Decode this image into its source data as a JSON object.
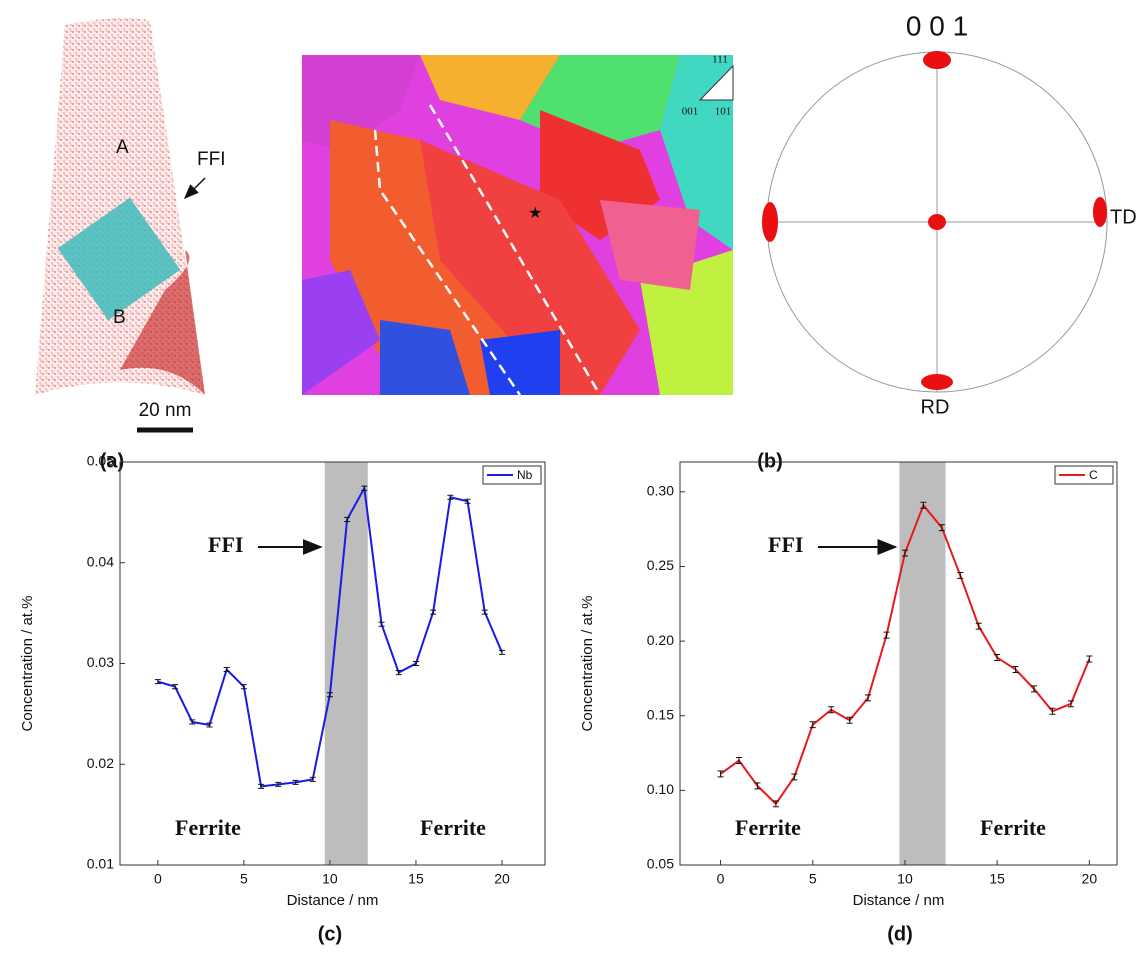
{
  "panel_a": {
    "labels": [
      "A",
      "FFI",
      "B"
    ],
    "scale_bar": "20 nm",
    "caption": "(a)"
  },
  "panel_b": {
    "ipf_corners": [
      "111",
      "001",
      "101"
    ],
    "pole_figure_title": "0 0 1",
    "td": "TD",
    "rd": "RD",
    "caption": "(b)"
  },
  "chart_data": [
    {
      "type": "line",
      "panel_label": "(c)",
      "x_label": "Distance / nm",
      "y_label": "Concentration / at.%",
      "x": [
        0,
        1,
        2,
        3,
        4,
        5,
        6,
        7,
        8,
        9,
        10,
        11,
        12,
        13,
        14,
        15,
        16,
        17,
        18,
        19,
        20
      ],
      "series": [
        {
          "name": "Nb",
          "color": "#1a1ae6",
          "values": [
            0.0282,
            0.0277,
            0.0242,
            0.0239,
            0.0294,
            0.0277,
            0.0178,
            0.018,
            0.0182,
            0.0185,
            0.0269,
            0.0443,
            0.0474,
            0.0339,
            0.0291,
            0.03,
            0.0351,
            0.0465,
            0.0461,
            0.0351,
            0.0311
          ],
          "errors": [
            0.0002,
            0.0002,
            0.0002,
            0.0002,
            0.0002,
            0.0002,
            0.0002,
            0.0002,
            0.0002,
            0.0002,
            0.0002,
            0.0002,
            0.0002,
            0.0002,
            0.0002,
            0.0002,
            0.0002,
            0.0002,
            0.0002,
            0.0002,
            0.0002
          ]
        }
      ],
      "xlim": [
        -2.2,
        22.5
      ],
      "ylim": [
        0.01,
        0.05
      ],
      "xticks": [
        0,
        5,
        10,
        15,
        20
      ],
      "yticks": [
        0.01,
        0.02,
        0.03,
        0.04,
        0.05
      ],
      "legend": "upper right",
      "shaded_region": [
        9.7,
        12.2
      ],
      "annotations": [
        "FFI",
        "Ferrite",
        "Ferrite"
      ]
    },
    {
      "type": "line",
      "panel_label": "(d)",
      "x_label": "Distance / nm",
      "y_label": "Concentration / at.%",
      "x": [
        0,
        1,
        2,
        3,
        4,
        5,
        6,
        7,
        8,
        9,
        10,
        11,
        12,
        13,
        14,
        15,
        16,
        17,
        18,
        19,
        20
      ],
      "series": [
        {
          "name": "C",
          "color": "#e61a1a",
          "values": [
            0.111,
            0.12,
            0.103,
            0.091,
            0.109,
            0.144,
            0.154,
            0.147,
            0.162,
            0.204,
            0.259,
            0.291,
            0.276,
            0.244,
            0.21,
            0.189,
            0.181,
            0.168,
            0.153,
            0.158,
            0.188
          ],
          "errors": [
            0.002,
            0.002,
            0.002,
            0.002,
            0.002,
            0.002,
            0.002,
            0.002,
            0.002,
            0.002,
            0.002,
            0.002,
            0.002,
            0.002,
            0.002,
            0.002,
            0.002,
            0.002,
            0.002,
            0.002,
            0.002
          ]
        }
      ],
      "xlim": [
        -2.2,
        21.5
      ],
      "ylim": [
        0.05,
        0.32
      ],
      "xticks": [
        0,
        5,
        10,
        15,
        20
      ],
      "yticks": [
        0.05,
        {
          "value": 0.1,
          "label": "0.10"
        },
        0.15,
        {
          "value": 0.2,
          "label": "0.20"
        },
        0.25,
        {
          "value": 0.3,
          "label": "0.30"
        }
      ],
      "legend": "upper right",
      "shaded_region": [
        9.7,
        12.2
      ],
      "annotations": [
        "FFI",
        "Ferrite",
        "Ferrite"
      ]
    }
  ]
}
